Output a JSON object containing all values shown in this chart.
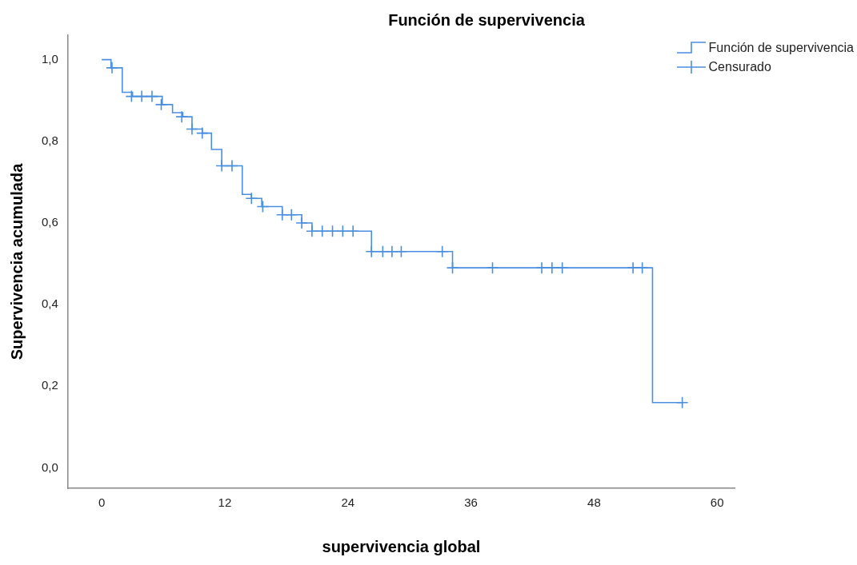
{
  "chart_data": {
    "type": "step",
    "title": "Función de supervivencia",
    "xlabel": "supervivencia global",
    "ylabel": "Supervivencia acumulada",
    "xlim": [
      -3.3,
      61.7
    ],
    "ylim": [
      -0.05,
      1.06
    ],
    "xticks": [
      0,
      12,
      24,
      36,
      48,
      60
    ],
    "yticks": [
      {
        "value": 0,
        "label": "0,0"
      },
      {
        "value": 0.2,
        "label": "0,2"
      },
      {
        "value": 0.4,
        "label": "0,4"
      },
      {
        "value": 0.6,
        "label": "0,6"
      },
      {
        "value": 0.8,
        "label": "0,8"
      },
      {
        "value": 1,
        "label": "1,0"
      }
    ],
    "grid": false,
    "legend": "top right",
    "series": [
      {
        "name": "Función de supervivencia",
        "type": "step",
        "color": "#4a8fe0",
        "x": [
          0,
          0.9,
          2.0,
          3.0,
          5.9,
          6.9,
          7.9,
          8.8,
          9.8,
          10.7,
          11.7,
          13.7,
          14.6,
          15.6,
          17.6,
          19.5,
          20.5,
          26.3,
          34.2,
          53.7,
          56.7
        ],
        "values": [
          1.0,
          0.98,
          0.92,
          0.91,
          0.89,
          0.87,
          0.86,
          0.83,
          0.82,
          0.78,
          0.74,
          0.67,
          0.66,
          0.64,
          0.62,
          0.6,
          0.58,
          0.53,
          0.49,
          0.16,
          0.16
        ]
      },
      {
        "name": "Censurado",
        "type": "scatter",
        "marker": "cross",
        "color": "#4a8fe0",
        "x": [
          1.0,
          2.9,
          3.9,
          4.9,
          5.8,
          7.8,
          8.8,
          9.8,
          11.7,
          12.7,
          14.6,
          15.7,
          17.6,
          18.5,
          19.5,
          20.5,
          21.5,
          22.5,
          23.5,
          24.5,
          26.3,
          27.4,
          28.3,
          29.2,
          33.2,
          34.2,
          38.1,
          42.9,
          43.9,
          44.9,
          51.8,
          52.7,
          56.6
        ],
        "values": [
          0.98,
          0.91,
          0.91,
          0.91,
          0.89,
          0.86,
          0.83,
          0.82,
          0.74,
          0.74,
          0.66,
          0.64,
          0.62,
          0.62,
          0.6,
          0.58,
          0.58,
          0.58,
          0.58,
          0.58,
          0.53,
          0.53,
          0.53,
          0.53,
          0.53,
          0.49,
          0.49,
          0.49,
          0.49,
          0.49,
          0.49,
          0.49,
          0.16
        ]
      }
    ]
  }
}
